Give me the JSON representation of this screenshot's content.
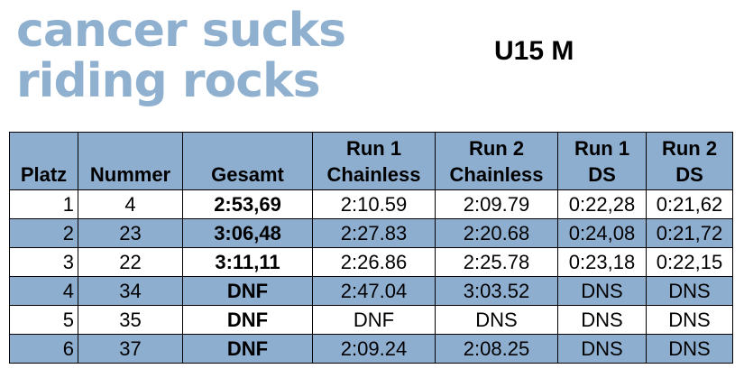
{
  "logo": {
    "line1": "cancer sucks",
    "line2": "riding rocks"
  },
  "category": "U15 M",
  "colors": {
    "header_bg": "#8eaed0",
    "alt_row_bg": "#8eaed0",
    "logo": "#8fb0cf"
  },
  "table": {
    "headers": [
      {
        "line1": "",
        "line2": "Platz"
      },
      {
        "line1": "",
        "line2": "Nummer"
      },
      {
        "line1": "",
        "line2": "Gesamt"
      },
      {
        "line1": "Run 1",
        "line2": "Chainless"
      },
      {
        "line1": "Run 2",
        "line2": "Chainless"
      },
      {
        "line1": "Run 1",
        "line2": "DS"
      },
      {
        "line1": "Run 2",
        "line2": "DS"
      }
    ],
    "rows": [
      [
        "1",
        "4",
        "2:53,69",
        "2:10.59",
        "2:09.79",
        "0:22,28",
        "0:21,62"
      ],
      [
        "2",
        "23",
        "3:06,48",
        "2:27.83",
        "2:20.68",
        "0:24,08",
        "0:21,72"
      ],
      [
        "3",
        "22",
        "3:11,11",
        "2:26.86",
        "2:25.78",
        "0:23,18",
        "0:22,15"
      ],
      [
        "4",
        "34",
        "DNF",
        "2:47.04",
        "3:03.52",
        "DNS",
        "DNS"
      ],
      [
        "5",
        "35",
        "DNF",
        "DNF",
        "DNS",
        "DNS",
        "DNS"
      ],
      [
        "6",
        "37",
        "DNF",
        "2:09.24",
        "2:08.25",
        "DNS",
        "DNS"
      ]
    ]
  }
}
